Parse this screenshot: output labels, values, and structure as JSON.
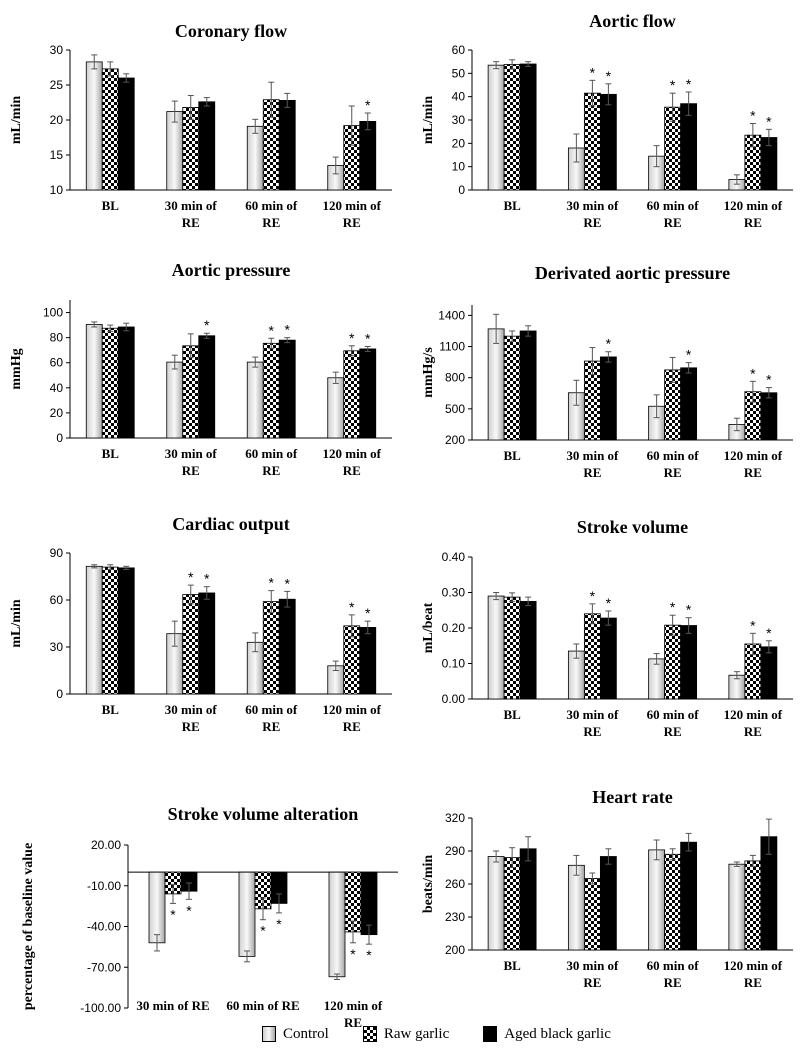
{
  "legend": {
    "items": [
      {
        "label": "Control",
        "fill": "control"
      },
      {
        "label": "Raw garlic",
        "fill": "raw"
      },
      {
        "label": "Aged black garlic",
        "fill": "aged"
      }
    ]
  },
  "colors": {
    "control_light": "#f2f2f2",
    "control_dark": "#a6a6a6",
    "aged": "#000000",
    "raw_check_dark": "#000000",
    "raw_check_light": "#ffffff"
  },
  "chart_data": [
    {
      "type": "bar",
      "title": "Coronary flow",
      "ylabel": "mL/min",
      "categories": [
        [
          "BL"
        ],
        [
          "30 min of",
          "RE"
        ],
        [
          "60 min of",
          "RE"
        ],
        [
          "120 min of",
          "RE"
        ]
      ],
      "ylim": [
        10,
        30
      ],
      "yticks": [
        "10",
        "15",
        "20",
        "25",
        "30"
      ],
      "tickvals": [
        10,
        15,
        20,
        25,
        30
      ],
      "series": [
        {
          "name": "Control",
          "values": [
            28.3,
            21.2,
            19.1,
            13.5
          ],
          "errors": [
            1.0,
            1.5,
            1.0,
            1.2
          ]
        },
        {
          "name": "Raw garlic",
          "values": [
            27.3,
            21.8,
            22.9,
            19.2
          ],
          "errors": [
            1.0,
            1.7,
            2.5,
            2.8
          ]
        },
        {
          "name": "Aged black garlic",
          "values": [
            26.0,
            22.6,
            22.8,
            19.8
          ],
          "errors": [
            0.6,
            0.6,
            1.0,
            1.2
          ]
        }
      ],
      "stars": [
        [
          false,
          false,
          false,
          false
        ],
        [
          false,
          false,
          false,
          false
        ],
        [
          false,
          false,
          false,
          true
        ]
      ],
      "stars_below": false
    },
    {
      "type": "bar",
      "title": "Aortic flow",
      "ylabel": "mL/min",
      "categories": [
        [
          "BL"
        ],
        [
          "30 min of",
          "RE"
        ],
        [
          "60 min of",
          "RE"
        ],
        [
          "120 min of",
          "RE"
        ]
      ],
      "ylim": [
        0,
        60
      ],
      "yticks": [
        "0",
        "10",
        "20",
        "30",
        "40",
        "50",
        "60"
      ],
      "tickvals": [
        0,
        10,
        20,
        30,
        40,
        50,
        60
      ],
      "series": [
        {
          "name": "Control",
          "values": [
            53.5,
            18.0,
            14.5,
            4.5
          ],
          "errors": [
            1.5,
            6.0,
            4.5,
            2.0
          ]
        },
        {
          "name": "Raw garlic",
          "values": [
            53.8,
            41.5,
            35.5,
            23.5
          ],
          "errors": [
            2.0,
            5.5,
            6.0,
            5.0
          ]
        },
        {
          "name": "Aged black garlic",
          "values": [
            54.0,
            41.0,
            37.0,
            22.5
          ],
          "errors": [
            1.0,
            4.5,
            5.0,
            3.5
          ]
        }
      ],
      "stars": [
        [
          false,
          false,
          false,
          false
        ],
        [
          false,
          true,
          true,
          true
        ],
        [
          false,
          true,
          true,
          true
        ]
      ],
      "stars_below": false
    },
    {
      "type": "bar",
      "title": "Aortic pressure",
      "ylabel": "mmHg",
      "categories": [
        [
          "BL"
        ],
        [
          "30 min of",
          "RE"
        ],
        [
          "60 min of",
          "RE"
        ],
        [
          "120 min of",
          "RE"
        ]
      ],
      "ylim": [
        0,
        110
      ],
      "yticks": [
        "0",
        "20",
        "40",
        "60",
        "80",
        "100"
      ],
      "tickvals": [
        0,
        20,
        40,
        60,
        80,
        100
      ],
      "series": [
        {
          "name": "Control",
          "values": [
            90.5,
            60.5,
            60.5,
            48.0
          ],
          "errors": [
            2.0,
            5.5,
            4.0,
            4.5
          ]
        },
        {
          "name": "Raw garlic",
          "values": [
            87.5,
            73.5,
            75.5,
            69.5
          ],
          "errors": [
            2.5,
            9.5,
            4.0,
            4.0
          ]
        },
        {
          "name": "Aged black garlic",
          "values": [
            88.5,
            81.5,
            78.0,
            71.0
          ],
          "errors": [
            3.0,
            2.0,
            2.0,
            2.0
          ]
        }
      ],
      "stars": [
        [
          false,
          false,
          false,
          false
        ],
        [
          false,
          false,
          true,
          true
        ],
        [
          false,
          true,
          true,
          true
        ]
      ],
      "stars_below": false
    },
    {
      "type": "bar",
      "title": "Derivated aortic pressure",
      "ylabel": "mmHg/s",
      "categories": [
        [
          "BL"
        ],
        [
          "30 min of",
          "RE"
        ],
        [
          "60 min of",
          "RE"
        ],
        [
          "120 min of",
          "RE"
        ]
      ],
      "ylim": [
        200,
        1500
      ],
      "yticks": [
        "200",
        "500",
        "800",
        "1100",
        "1400"
      ],
      "tickvals": [
        200,
        500,
        800,
        1100,
        1400
      ],
      "series": [
        {
          "name": "Control",
          "values": [
            1270,
            655,
            525,
            350
          ],
          "errors": [
            140,
            120,
            110,
            60
          ]
        },
        {
          "name": "Raw garlic",
          "values": [
            1200,
            960,
            875,
            665
          ],
          "errors": [
            50,
            130,
            120,
            100
          ]
        },
        {
          "name": "Aged black garlic",
          "values": [
            1250,
            1000,
            895,
            655
          ],
          "errors": [
            50,
            50,
            50,
            50
          ]
        }
      ],
      "stars": [
        [
          false,
          false,
          false,
          false
        ],
        [
          false,
          false,
          false,
          true
        ],
        [
          false,
          true,
          true,
          true
        ]
      ],
      "stars_below": false
    },
    {
      "type": "bar",
      "title": "Cardiac output",
      "ylabel": "mL/min",
      "categories": [
        [
          "BL"
        ],
        [
          "30 min of",
          "RE"
        ],
        [
          "60 min of",
          "RE"
        ],
        [
          "120 min of",
          "RE"
        ]
      ],
      "ylim": [
        0,
        90
      ],
      "yticks": [
        "0",
        "30",
        "60",
        "90"
      ],
      "tickvals": [
        0,
        30,
        60,
        90
      ],
      "series": [
        {
          "name": "Control",
          "values": [
            81.5,
            38.5,
            33.0,
            18.0
          ],
          "errors": [
            1.0,
            8.0,
            6.0,
            3.0
          ]
        },
        {
          "name": "Raw garlic",
          "values": [
            81.0,
            63.5,
            59.0,
            43.5
          ],
          "errors": [
            1.5,
            6.0,
            7.0,
            7.0
          ]
        },
        {
          "name": "Aged black garlic",
          "values": [
            80.5,
            64.5,
            60.5,
            42.5
          ],
          "errors": [
            1.0,
            4.0,
            5.0,
            4.0
          ]
        }
      ],
      "stars": [
        [
          false,
          false,
          false,
          false
        ],
        [
          false,
          true,
          true,
          true
        ],
        [
          false,
          true,
          true,
          true
        ]
      ],
      "stars_below": false
    },
    {
      "type": "bar",
      "title": "Stroke volume",
      "ylabel": "mL/beat",
      "categories": [
        [
          "BL"
        ],
        [
          "30 min of",
          "RE"
        ],
        [
          "60 min of",
          "RE"
        ],
        [
          "120 min of",
          "RE"
        ]
      ],
      "ylim": [
        0,
        0.4
      ],
      "yticks": [
        "0.00",
        "0.10",
        "0.20",
        "0.30",
        "0.40"
      ],
      "tickvals": [
        0,
        0.1,
        0.2,
        0.3,
        0.4
      ],
      "series": [
        {
          "name": "Control",
          "values": [
            0.29,
            0.135,
            0.113,
            0.067
          ],
          "errors": [
            0.01,
            0.02,
            0.015,
            0.01
          ]
        },
        {
          "name": "Raw garlic",
          "values": [
            0.287,
            0.24,
            0.208,
            0.155
          ],
          "errors": [
            0.012,
            0.028,
            0.028,
            0.03
          ]
        },
        {
          "name": "Aged black garlic",
          "values": [
            0.275,
            0.228,
            0.207,
            0.147
          ],
          "errors": [
            0.012,
            0.02,
            0.022,
            0.017
          ]
        }
      ],
      "stars": [
        [
          false,
          false,
          false,
          false
        ],
        [
          false,
          true,
          true,
          true
        ],
        [
          false,
          true,
          true,
          true
        ]
      ],
      "stars_below": false
    },
    {
      "type": "bar",
      "title": "Stroke volume alteration",
      "ylabel": "percentage of baseline value",
      "categories": [
        [
          "30 min of RE"
        ],
        [
          "60 min of RE"
        ],
        [
          "120 min of",
          "RE"
        ]
      ],
      "ylim": [
        -100,
        20
      ],
      "yticks": [
        "20.00",
        "-10.00",
        "-40.00",
        "-70.00",
        "-100.00"
      ],
      "tickvals": [
        20,
        -10,
        -40,
        -70,
        -100
      ],
      "series": [
        {
          "name": "Control",
          "values": [
            -52,
            -62,
            -77
          ],
          "errors": [
            6,
            4,
            2
          ]
        },
        {
          "name": "Raw garlic",
          "values": [
            -16,
            -27,
            -44
          ],
          "errors": [
            7,
            8,
            8
          ]
        },
        {
          "name": "Aged black garlic",
          "values": [
            -14,
            -23,
            -46
          ],
          "errors": [
            6,
            7,
            7
          ]
        }
      ],
      "stars": [
        [
          false,
          false,
          false
        ],
        [
          true,
          true,
          true
        ],
        [
          true,
          true,
          true
        ]
      ],
      "stars_below": true
    },
    {
      "type": "bar",
      "title": "Heart rate",
      "ylabel": "beats/min",
      "categories": [
        [
          "BL"
        ],
        [
          "30 min of",
          "RE"
        ],
        [
          "60 min of",
          "RE"
        ],
        [
          "120 min of",
          "RE"
        ]
      ],
      "ylim": [
        200,
        320
      ],
      "yticks": [
        "200",
        "230",
        "260",
        "290",
        "320"
      ],
      "tickvals": [
        200,
        230,
        260,
        290,
        320
      ],
      "series": [
        {
          "name": "Control",
          "values": [
            285,
            277,
            291,
            278
          ],
          "errors": [
            5,
            9,
            9,
            2
          ]
        },
        {
          "name": "Raw garlic",
          "values": [
            284,
            265,
            287,
            281
          ],
          "errors": [
            9,
            5,
            5,
            5
          ]
        },
        {
          "name": "Aged black garlic",
          "values": [
            292,
            285,
            298,
            303
          ],
          "errors": [
            11,
            7,
            8,
            16
          ]
        }
      ],
      "stars": [
        [
          false,
          false,
          false,
          false
        ],
        [
          false,
          false,
          false,
          false
        ],
        [
          false,
          false,
          false,
          false
        ]
      ],
      "stars_below": false
    }
  ]
}
